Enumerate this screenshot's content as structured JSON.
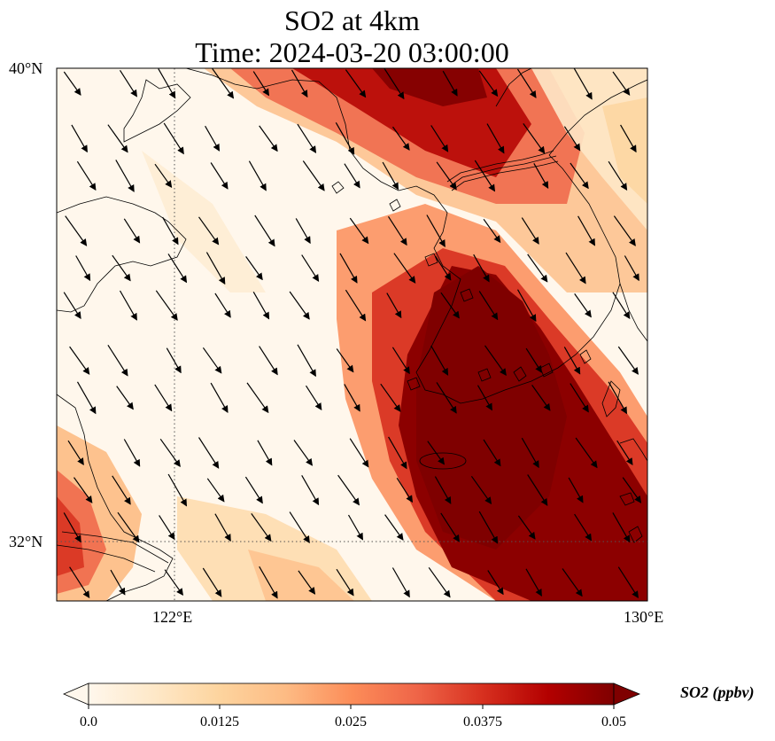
{
  "title": {
    "line1": "SO2 at 4km",
    "line2": "Time: 2024-03-20 03:00:00"
  },
  "axes": {
    "lat_labels": [
      "40°N",
      "32°N"
    ],
    "lon_labels": [
      "122°E",
      "130°E"
    ],
    "lon_range": [
      120,
      130
    ],
    "lat_range": [
      31,
      40
    ]
  },
  "colorbar": {
    "label": "SO2 (ppbv)",
    "ticks": [
      "0.0",
      "0.0125",
      "0.025",
      "0.0375",
      "0.05"
    ],
    "vmin": 0.0,
    "vmax": 0.05,
    "extend": "both",
    "colormap": "OrRd"
  },
  "chart_data": {
    "type": "heatmap",
    "title": "SO2 at 4km\nTime: 2024-03-20 03:00:00",
    "field": "SO2 concentration",
    "units": "ppbv",
    "xlim": [
      120,
      130
    ],
    "ylim": [
      31,
      40
    ],
    "gridlines": {
      "lon": [
        122
      ],
      "lat": [
        32
      ]
    },
    "wind_vectors": "uniform NW-to-SE flow across domain"
  }
}
